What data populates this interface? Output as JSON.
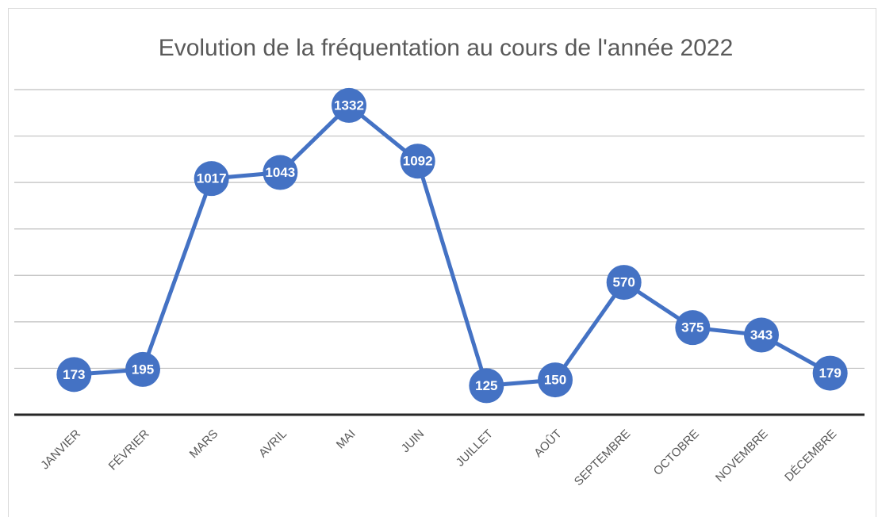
{
  "chart_data": {
    "type": "line",
    "title": "Evolution de la fréquentation au cours de l'année 2022",
    "categories": [
      "JANVIER",
      "FÉVRIER",
      "MARS",
      "AVRIL",
      "MAI",
      "JUIN",
      "JUILLET",
      "AOÛT",
      "SEPTEMBRE",
      "OCTOBRE",
      "NOVEMBRE",
      "DÉCEMBRE"
    ],
    "values": [
      173,
      195,
      1017,
      1043,
      1332,
      1092,
      125,
      150,
      570,
      375,
      343,
      179
    ],
    "color": "#4472c4",
    "ylim": [
      0,
      1400
    ],
    "yticks": [
      0,
      200,
      400,
      600,
      800,
      1000,
      1200,
      1400
    ],
    "grid": true
  }
}
